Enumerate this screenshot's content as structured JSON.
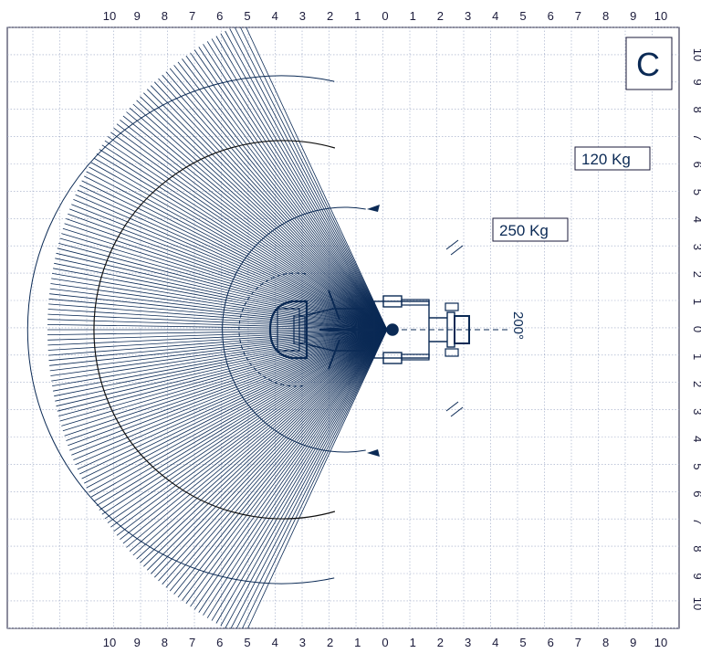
{
  "diagram": {
    "corner_label": "C",
    "rotation_angle_label": "200°",
    "load_labels": [
      "120 Kg",
      "250 Kg"
    ],
    "top_axis_ticks": [
      "10",
      "9",
      "8",
      "7",
      "6",
      "5",
      "4",
      "3",
      "2",
      "1",
      "0",
      "1",
      "2",
      "3",
      "4",
      "5",
      "6",
      "7",
      "8",
      "9",
      "10"
    ],
    "bottom_axis_ticks": [
      "10",
      "9",
      "8",
      "7",
      "6",
      "5",
      "4",
      "3",
      "2",
      "1",
      "0",
      "1",
      "2",
      "3",
      "4",
      "5",
      "6",
      "7",
      "8",
      "9",
      "10"
    ],
    "right_axis_ticks": [
      "10",
      "9",
      "8",
      "7",
      "6",
      "5",
      "4",
      "3",
      "2",
      "1",
      "0",
      "1",
      "2",
      "3",
      "4",
      "5",
      "6",
      "7",
      "8",
      "9",
      "10"
    ],
    "colors": {
      "ink": "#0b2a55",
      "grid": "#9aa6c4",
      "black_arc": "#111111",
      "frame": "#1a1a3a"
    }
  }
}
